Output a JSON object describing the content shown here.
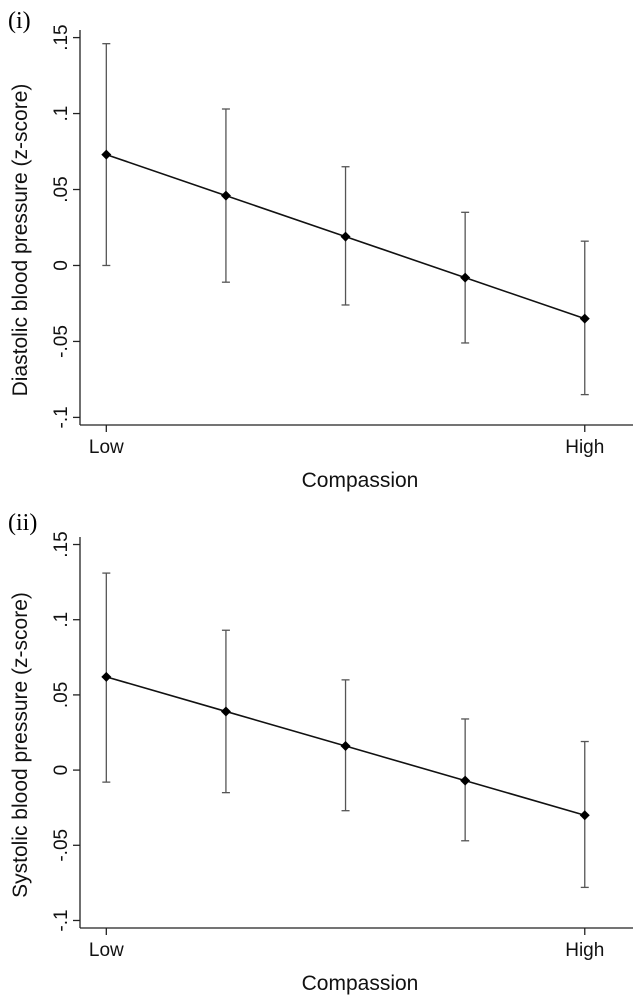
{
  "chart_data": [
    {
      "panel_label": "(i)",
      "type": "line",
      "xlabel": "Compassion",
      "ylabel": "Diastolic blood pressure (z-score)",
      "x_tick_labels": [
        "Low",
        "High"
      ],
      "y_ticks": [
        -0.1,
        -0.05,
        0,
        0.05,
        0.1,
        0.15
      ],
      "y_tick_labels": [
        "-.1",
        "-.05",
        "0",
        ".05",
        ".1",
        ".15"
      ],
      "ylim": [
        -0.105,
        0.155
      ],
      "x": [
        1,
        2,
        3,
        4,
        5
      ],
      "xlim": [
        0.78,
        5.42
      ],
      "series": [
        {
          "values": [
            0.073,
            0.046,
            0.019,
            -0.008,
            -0.035
          ],
          "ci_low": [
            0.0,
            -0.011,
            -0.026,
            -0.051,
            -0.085
          ],
          "ci_high": [
            0.146,
            0.103,
            0.065,
            0.035,
            0.016
          ]
        }
      ],
      "grid": false,
      "legend": false
    },
    {
      "panel_label": "(ii)",
      "type": "line",
      "xlabel": "Compassion",
      "ylabel": "Systolic blood pressure (z-score)",
      "x_tick_labels": [
        "Low",
        "High"
      ],
      "y_ticks": [
        -0.1,
        -0.05,
        0,
        0.05,
        0.1,
        0.15
      ],
      "y_tick_labels": [
        "-.1",
        "-.05",
        "0",
        ".05",
        ".1",
        ".15"
      ],
      "ylim": [
        -0.105,
        0.155
      ],
      "x": [
        1,
        2,
        3,
        4,
        5
      ],
      "xlim": [
        0.78,
        5.42
      ],
      "series": [
        {
          "values": [
            0.062,
            0.039,
            0.016,
            -0.007,
            -0.03
          ],
          "ci_low": [
            -0.008,
            -0.015,
            -0.027,
            -0.047,
            -0.078
          ],
          "ci_high": [
            0.131,
            0.093,
            0.06,
            0.034,
            0.019
          ]
        }
      ],
      "grid": false,
      "legend": false
    }
  ]
}
